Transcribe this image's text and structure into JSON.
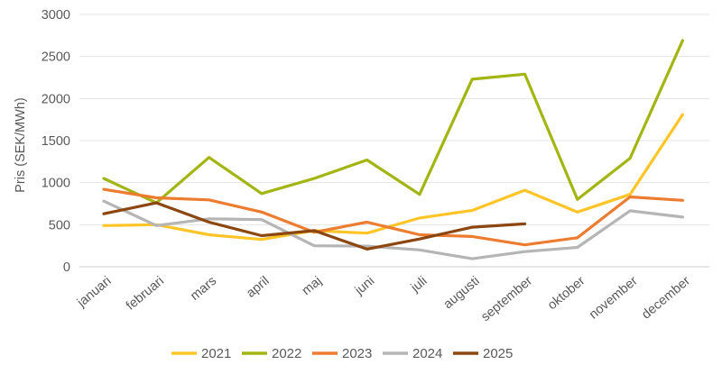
{
  "chart_data": {
    "type": "line",
    "title": "",
    "xlabel": "",
    "ylabel": "Pris (SEK/MWh)",
    "ylim": [
      0,
      3000
    ],
    "yticks": [
      0,
      500,
      1000,
      1500,
      2000,
      2500,
      3000
    ],
    "grid": "horizontal",
    "legend_position": "bottom",
    "categories": [
      "januari",
      "februari",
      "mars",
      "april",
      "maj",
      "juni",
      "juli",
      "augusti",
      "september",
      "oktober",
      "november",
      "december"
    ],
    "series": [
      {
        "name": "2021",
        "color": "#FFC528",
        "values": [
          490,
          500,
          380,
          325,
          430,
          400,
          580,
          670,
          910,
          650,
          860,
          1810
        ]
      },
      {
        "name": "2022",
        "color": "#A2B513",
        "values": [
          1050,
          760,
          1300,
          870,
          1050,
          1270,
          860,
          2230,
          2290,
          800,
          1290,
          2690
        ]
      },
      {
        "name": "2023",
        "color": "#EC7C30",
        "values": [
          920,
          820,
          795,
          650,
          410,
          530,
          380,
          360,
          260,
          345,
          830,
          790
        ]
      },
      {
        "name": "2024",
        "color": "#B5B5B5",
        "values": [
          780,
          490,
          570,
          560,
          250,
          245,
          200,
          95,
          180,
          230,
          665,
          590
        ]
      },
      {
        "name": "2025",
        "color": "#8C4610",
        "values": [
          630,
          760,
          530,
          370,
          430,
          210,
          330,
          470,
          510
        ]
      }
    ]
  },
  "colors": {
    "background": "#FFFFFF",
    "axis_text": "#595959",
    "gridline": "#E4E4E4",
    "axis_line": "#C8C8C8"
  }
}
